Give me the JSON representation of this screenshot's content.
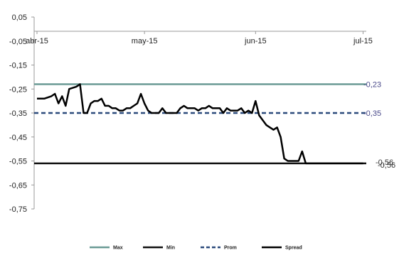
{
  "chart_data": {
    "type": "line",
    "title": "",
    "xlabel": "",
    "ylabel": "",
    "ylim": [
      -0.75,
      0.05
    ],
    "y_ticks": [
      "0,05",
      "-0,05",
      "-0,15",
      "-0,25",
      "-0,35",
      "-0,45",
      "-0,55",
      "-0,65",
      "-0,75"
    ],
    "y_tick_values": [
      0.05,
      -0.05,
      -0.15,
      -0.25,
      -0.35,
      -0.45,
      -0.55,
      -0.65,
      -0.75
    ],
    "x_ticks": [
      "abr-15",
      "may-15",
      "jun-15",
      "jul-15"
    ],
    "x_tick_days": [
      0,
      30,
      61,
      91
    ],
    "xlim_days": [
      0,
      91.5
    ],
    "legend_position": "bottom",
    "grid": false,
    "series": [
      {
        "name": "Max",
        "color": "#6b9b95",
        "dash": "solid",
        "values": [
          -0.23,
          -0.23
        ],
        "label": "-0,23"
      },
      {
        "name": "Min",
        "color": "#111111",
        "dash": "solid",
        "values": [
          -0.56,
          -0.56
        ],
        "label": "-0,56"
      },
      {
        "name": "Prom",
        "color": "#2c4a7c",
        "dash": "dashed",
        "values": [
          -0.35,
          -0.35
        ],
        "label": "-0,35"
      },
      {
        "name": "Spread",
        "color": "#000000",
        "dash": "solid",
        "label": "-0,56",
        "x_days": [
          0,
          2,
          4,
          5,
          6,
          7,
          8,
          9,
          11,
          12,
          13,
          14,
          15,
          16,
          17,
          18,
          19,
          20,
          21,
          22,
          23,
          24,
          25,
          26,
          27,
          28,
          29,
          30,
          31,
          32,
          33,
          34,
          35,
          36,
          37,
          38,
          39,
          40,
          41,
          42,
          43,
          44,
          45,
          46,
          47,
          48,
          49,
          50,
          51,
          52,
          53,
          54,
          55,
          56,
          57,
          58,
          59,
          60,
          61,
          62,
          63,
          64,
          65,
          66,
          67,
          68,
          69,
          70,
          71,
          72,
          73,
          74,
          75,
          76,
          77,
          78,
          79,
          80,
          81,
          82,
          83,
          84,
          85,
          86,
          87,
          88,
          89,
          90,
          91
        ],
        "values": [
          -0.29,
          -0.29,
          -0.28,
          -0.27,
          -0.31,
          -0.28,
          -0.32,
          -0.25,
          -0.24,
          -0.23,
          -0.35,
          -0.35,
          -0.31,
          -0.3,
          -0.3,
          -0.29,
          -0.32,
          -0.32,
          -0.33,
          -0.33,
          -0.34,
          -0.34,
          -0.33,
          -0.33,
          -0.32,
          -0.31,
          -0.27,
          -0.31,
          -0.34,
          -0.35,
          -0.35,
          -0.35,
          -0.33,
          -0.35,
          -0.35,
          -0.35,
          -0.35,
          -0.33,
          -0.32,
          -0.33,
          -0.33,
          -0.33,
          -0.34,
          -0.33,
          -0.33,
          -0.32,
          -0.33,
          -0.33,
          -0.33,
          -0.35,
          -0.33,
          -0.34,
          -0.34,
          -0.34,
          -0.33,
          -0.35,
          -0.34,
          -0.35,
          -0.3,
          -0.36,
          -0.38,
          -0.4,
          -0.41,
          -0.42,
          -0.41,
          -0.45,
          -0.54,
          -0.55,
          -0.55,
          -0.55,
          -0.55,
          -0.51,
          -0.56,
          -0.56,
          -0.56,
          -0.56,
          -0.56,
          -0.56,
          -0.56,
          -0.56,
          -0.56,
          -0.56,
          -0.56,
          -0.56,
          -0.56,
          -0.56,
          -0.56,
          -0.56,
          -0.56
        ]
      }
    ]
  }
}
